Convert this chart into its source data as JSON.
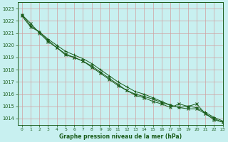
{
  "title": "Graphe pression niveau de la mer (hPa)",
  "bg_color": "#c8f0f0",
  "grid_color": "#d0a0a0",
  "line_color": "#1a5c1a",
  "xlim": [
    -0.5,
    23
  ],
  "ylim": [
    1013.5,
    1023.5
  ],
  "yticks": [
    1014,
    1015,
    1016,
    1017,
    1018,
    1019,
    1020,
    1021,
    1022,
    1023
  ],
  "xticks": [
    0,
    1,
    2,
    3,
    4,
    5,
    6,
    7,
    8,
    9,
    10,
    11,
    12,
    13,
    14,
    15,
    16,
    17,
    18,
    19,
    20,
    21,
    22,
    23
  ],
  "series": [
    [
      1022.5,
      1021.8,
      1021.0,
      1020.3,
      1019.8,
      1019.3,
      1019.0,
      1018.7,
      1018.2,
      1017.7,
      1017.2,
      1016.7,
      1016.3,
      1016.0,
      1015.8,
      1015.6,
      1015.3,
      1015.1,
      1014.9,
      1014.8,
      1014.8,
      1014.4,
      1014.0,
      1013.7
    ],
    [
      1022.5,
      1021.6,
      1021.1,
      1020.5,
      1020.0,
      1019.5,
      1019.2,
      1018.9,
      1018.5,
      1018.0,
      1017.5,
      1017.0,
      1016.6,
      1016.2,
      1016.0,
      1015.7,
      1015.4,
      1015.1,
      1014.9,
      1015.0,
      1014.9,
      1014.5,
      1014.1,
      1013.8
    ],
    [
      1022.4,
      1021.5,
      1021.1,
      1020.4,
      1019.8,
      1019.2,
      1019.0,
      1018.7,
      1018.3,
      1017.8,
      1017.3,
      1016.8,
      1016.3,
      1015.9,
      1015.7,
      1015.4,
      1015.2,
      1014.9,
      1015.2,
      1015.0,
      1015.2,
      1014.4,
      1013.9,
      1013.7
    ]
  ],
  "marker_styles": [
    "x",
    "+",
    "x"
  ],
  "figwidth": 3.2,
  "figheight": 2.0,
  "dpi": 100
}
